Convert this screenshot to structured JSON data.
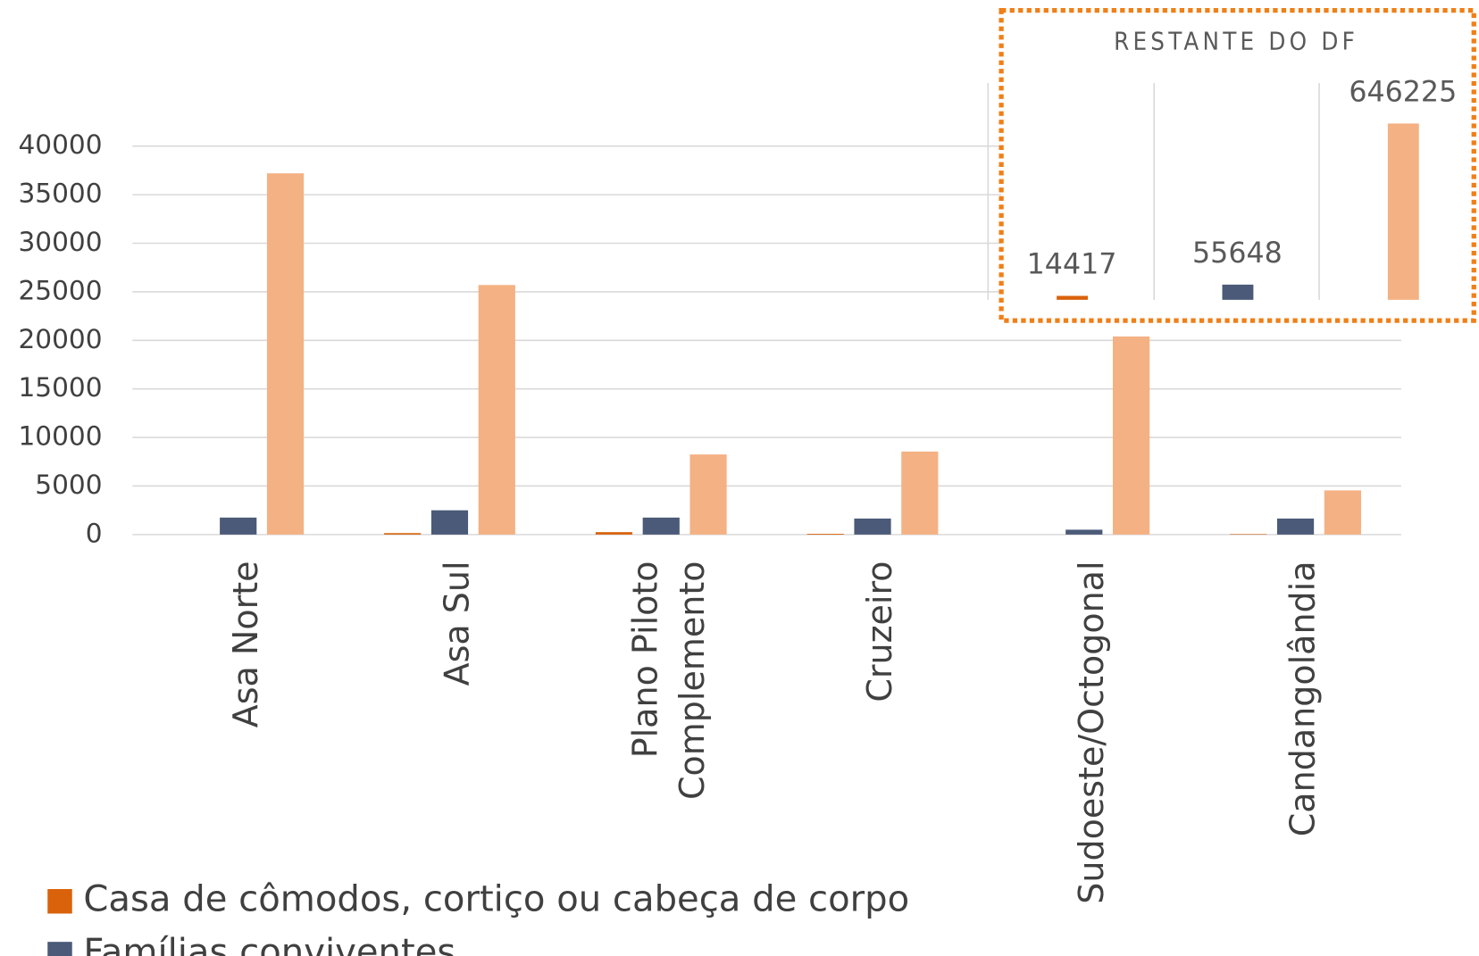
{
  "chart_data": [
    {
      "type": "bar",
      "categories": [
        "Asa Norte",
        "Asa Sul",
        "Plano Piloto Complemento",
        "Cruzeiro",
        "Sudoeste/Octogonal",
        "Candangolândia"
      ],
      "series": [
        {
          "name": "Casa de cômodos, cortiço ou cabeça de corpo",
          "color": "#d9620a",
          "values": [
            0,
            150,
            250,
            80,
            0,
            50
          ]
        },
        {
          "name": "Famílias conviventes",
          "color": "#4a5a78",
          "values": [
            1750,
            2500,
            1750,
            1650,
            500,
            1650
          ]
        },
        {
          "color": "#f4b183",
          "values": [
            37200,
            25700,
            8250,
            8550,
            20400,
            4550
          ]
        }
      ],
      "ylim": [
        0,
        40000
      ],
      "yticks": [
        0,
        5000,
        10000,
        15000,
        20000,
        25000,
        30000,
        35000,
        40000
      ],
      "grid": true,
      "legend": "bottom-left"
    },
    {
      "type": "bar",
      "title": "RESTANTE DO DF",
      "values": [
        14417,
        55648,
        646225
      ],
      "colors": [
        "#d9620a",
        "#4a5a78",
        "#f4b183"
      ]
    }
  ]
}
